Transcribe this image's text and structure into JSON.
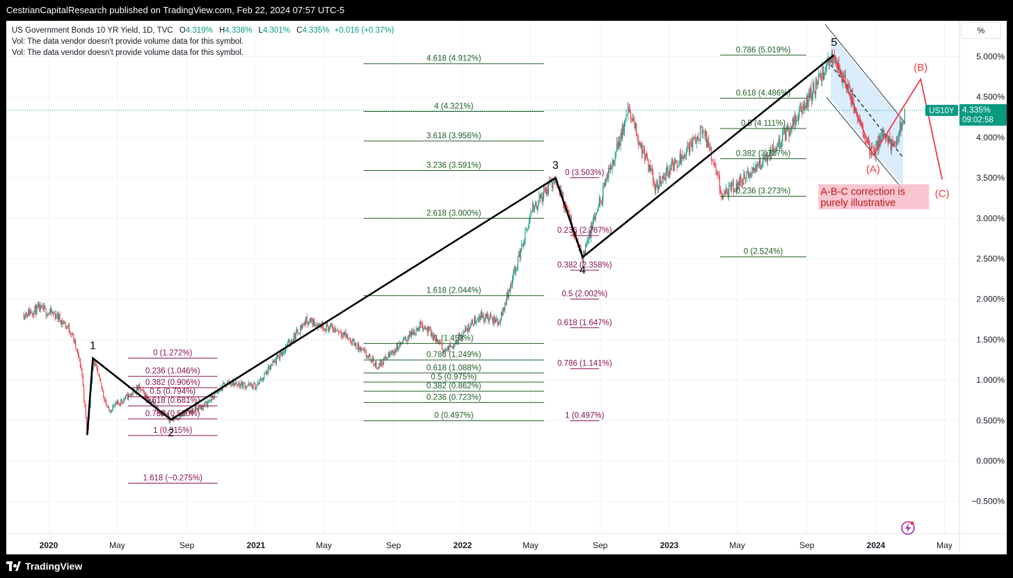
{
  "header": {
    "publisher_line": "CestrianCapitalResearch published on TradingView.com, Feb 22, 2024 07:57 UTC-5"
  },
  "legend": {
    "symbol": "US Government Bonds 10 YR Yield, 1D, TVC",
    "open_label": "O",
    "open": "4.319%",
    "high_label": "H",
    "high": "4.338%",
    "low_label": "L",
    "low": "4.301%",
    "close_label": "C",
    "close": "4.335%",
    "change": "+0.016 (+0.37%)",
    "vol_msg_1": "Vol: The data vendor doesn't provide volume data for this symbol.",
    "vol_msg_2": "Vol: The data vendor doesn't provide volume data for this symbol."
  },
  "scale_button": "%",
  "price_tag": {
    "symbol": "US10Y",
    "price": "4.335%",
    "countdown": "09:02:58"
  },
  "footer": {
    "brand": "TradingView"
  },
  "colors": {
    "up": "#089981",
    "down": "#f23645",
    "fib_green": "#1b5e20",
    "fib_purple": "#880e4f",
    "wave": "#000000",
    "abc": "#f23645",
    "channel": "#bbdefb"
  },
  "chart_data": {
    "type": "candlestick",
    "symbol": "US10Y",
    "y_axis": {
      "min": -0.6,
      "max": 5.5,
      "ticks": [
        "5.000%",
        "4.500%",
        "4.000%",
        "3.500%",
        "3.000%",
        "2.500%",
        "2.000%",
        "1.500%",
        "1.000%",
        "0.500%",
        "0.000%",
        "−0.500%"
      ],
      "tick_values": [
        5,
        4.5,
        4,
        3.5,
        3,
        2.5,
        2,
        1.5,
        1,
        0.5,
        0,
        -0.5
      ]
    },
    "x_axis": {
      "labels": [
        "2020",
        "May",
        "Sep",
        "2021",
        "May",
        "Sep",
        "2022",
        "May",
        "Sep",
        "2023",
        "May",
        "Sep",
        "2024",
        "May"
      ],
      "bold": [
        "2020",
        "2021",
        "2022",
        "2023",
        "2024"
      ],
      "dates": [
        "2020-01-01",
        "2020-05-01",
        "2020-09-01",
        "2021-01-01",
        "2021-05-01",
        "2021-09-01",
        "2022-01-01",
        "2022-05-01",
        "2022-09-01",
        "2023-01-01",
        "2023-05-01",
        "2023-09-01",
        "2024-01-01",
        "2024-05-01"
      ]
    },
    "price_path": [
      [
        "2019-11-18",
        1.82
      ],
      [
        "2019-12-15",
        1.88
      ],
      [
        "2020-01-15",
        1.8
      ],
      [
        "2020-02-10",
        1.6
      ],
      [
        "2020-02-28",
        1.13
      ],
      [
        "2020-03-09",
        0.32
      ],
      [
        "2020-03-19",
        1.27
      ],
      [
        "2020-04-15",
        0.62
      ],
      [
        "2020-06-08",
        0.9
      ],
      [
        "2020-07-15",
        0.62
      ],
      [
        "2020-08-04",
        0.51
      ],
      [
        "2020-10-01",
        0.68
      ],
      [
        "2020-11-11",
        0.97
      ],
      [
        "2021-01-01",
        0.92
      ],
      [
        "2021-03-31",
        1.74
      ],
      [
        "2021-06-01",
        1.6
      ],
      [
        "2021-08-04",
        1.17
      ],
      [
        "2021-10-21",
        1.7
      ],
      [
        "2021-12-02",
        1.35
      ],
      [
        "2022-01-31",
        1.8
      ],
      [
        "2022-03-07",
        1.72
      ],
      [
        "2022-05-06",
        3.13
      ],
      [
        "2022-06-14",
        3.5
      ],
      [
        "2022-08-01",
        2.52
      ],
      [
        "2022-10-21",
        4.33
      ],
      [
        "2022-12-07",
        3.4
      ],
      [
        "2023-03-02",
        4.09
      ],
      [
        "2023-04-06",
        3.27
      ],
      [
        "2023-06-01",
        3.6
      ],
      [
        "2023-08-01",
        4.1
      ],
      [
        "2023-10-19",
        5.02
      ],
      [
        "2023-12-27",
        3.78
      ],
      [
        "2024-01-15",
        4.1
      ],
      [
        "2024-02-02",
        3.85
      ],
      [
        "2024-02-22",
        4.335
      ]
    ],
    "current_price": 4.335,
    "elliott_waves": [
      {
        "label": "1",
        "date": "2020-03-19",
        "value": 1.27
      },
      {
        "label": "2",
        "date": "2020-08-04",
        "value": 0.51
      },
      {
        "label": "3",
        "date": "2022-06-14",
        "value": 3.5
      },
      {
        "label": "4",
        "date": "2022-08-01",
        "value": 2.52
      },
      {
        "label": "5",
        "date": "2023-10-19",
        "value": 5.02
      }
    ],
    "wave_start": {
      "date": "2020-03-09",
      "value": 0.32
    },
    "abc_projection": [
      {
        "label": "",
        "date": "2023-10-19",
        "value": 5.02
      },
      {
        "label": "(A)",
        "date": "2023-12-27",
        "value": 3.78
      },
      {
        "label": "(B)",
        "date": "2024-03-20",
        "value": 4.72
      },
      {
        "label": "(C)",
        "date": "2024-04-27",
        "value": 3.48
      }
    ],
    "fib_sets": [
      {
        "color": "purple",
        "date_from": "2020-05-20",
        "date_to": "2020-10-25",
        "levels": [
          {
            "text": "0 (1.272%)",
            "value": 1.272
          },
          {
            "text": "0.236 (1.046%)",
            "value": 1.046
          },
          {
            "text": "0.382 (0.906%)",
            "value": 0.906
          },
          {
            "text": "0.5 (0.794%)",
            "value": 0.794
          },
          {
            "text": "0.618 (0.681%)",
            "value": 0.681
          },
          {
            "text": "0.786 (0.520%)",
            "value": 0.52
          },
          {
            "text": "1 (0.315%)",
            "value": 0.315
          },
          {
            "text": "1.618 (−0.275%)",
            "value": -0.275
          }
        ]
      },
      {
        "color": "green",
        "date_from": "2021-07-10",
        "date_to": "2022-05-25",
        "levels": [
          {
            "text": "4.618 (4.912%)",
            "value": 4.912
          },
          {
            "text": "4 (4.321%)",
            "value": 4.321
          },
          {
            "text": "3.618 (3.956%)",
            "value": 3.956
          },
          {
            "text": "3.236 (3.591%)",
            "value": 3.591
          },
          {
            "text": "2.618 (3.000%)",
            "value": 3.0
          },
          {
            "text": "1.618 (2.044%)",
            "value": 2.044
          },
          {
            "text": "1 (1.453%)",
            "value": 1.453
          },
          {
            "text": "0.786 (1.249%)",
            "value": 1.249
          },
          {
            "text": "0.618 (1.088%)",
            "value": 1.088
          },
          {
            "text": "0.5 (0.975%)",
            "value": 0.975
          },
          {
            "text": "0.382 (0.862%)",
            "value": 0.862
          },
          {
            "text": "0.236 (0.723%)",
            "value": 0.723
          },
          {
            "text": "0 (0.497%)",
            "value": 0.497
          }
        ]
      },
      {
        "color": "purple",
        "date_from": "2022-07-10",
        "date_to": "2022-08-30",
        "levels": [
          {
            "text": "0 (3.503%)",
            "value": 3.503
          },
          {
            "text": "0.236 (2.787%)",
            "value": 2.787
          },
          {
            "text": "0.382 (2.358%)",
            "value": 2.358
          },
          {
            "text": "0.5 (2.002%)",
            "value": 2.002
          },
          {
            "text": "0.618 (1.647%)",
            "value": 1.647
          },
          {
            "text": "0.786 (1.141%)",
            "value": 1.141
          },
          {
            "text": "1 (0.497%)",
            "value": 0.497
          }
        ]
      },
      {
        "color": "green",
        "date_from": "2023-04-01",
        "date_to": "2023-08-31",
        "levels": [
          {
            "text": "0.786 (5.019%)",
            "value": 5.019
          },
          {
            "text": "0.618 (4.486%)",
            "value": 4.486
          },
          {
            "text": "0.5 (4.111%)",
            "value": 4.111
          },
          {
            "text": "0.382 (3.737%)",
            "value": 3.737
          },
          {
            "text": "0.236 (3.273%)",
            "value": 3.273
          },
          {
            "text": "0 (2.524%)",
            "value": 2.524
          }
        ]
      }
    ],
    "channel": {
      "start_date": "2023-10-13",
      "end_date": "2024-02-18",
      "upper": [
        5.28,
        4.19
      ],
      "lower": [
        4.48,
        3.4
      ],
      "mid": [
        4.9,
        3.75
      ]
    },
    "annotation": {
      "text_lines": [
        "A-B-C correction is",
        "purely illustrative"
      ],
      "date": "2024-04-05",
      "value": 3.12
    }
  }
}
